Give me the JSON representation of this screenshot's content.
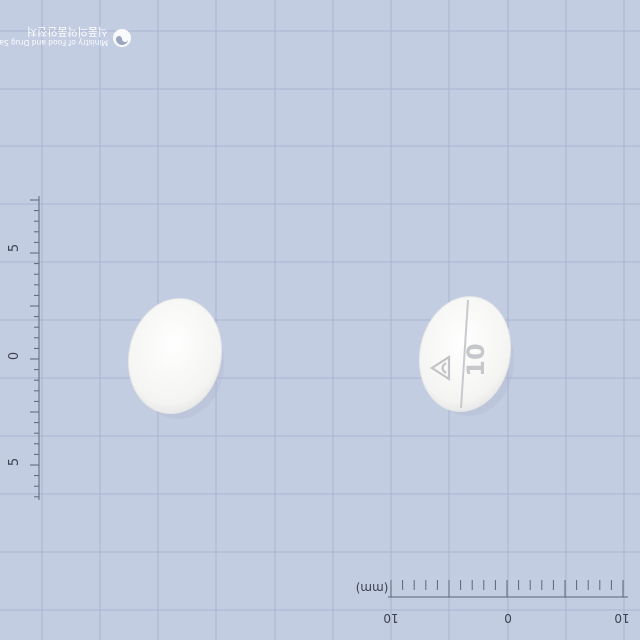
{
  "watermark": {
    "org_korean": "식품의약품안전처",
    "org_english": "Ministry of Food and Drug Safety"
  },
  "left_scale": {
    "labels": [
      "5",
      "0",
      "5"
    ]
  },
  "bottom_scale": {
    "unit": "(mm)",
    "labels": [
      "10",
      "0",
      "10"
    ]
  },
  "tablet_back": {
    "imprint": "10"
  },
  "colors": {
    "background": "#c3cde2",
    "grid_line": "#a6b3cf",
    "tablet": "#f6f6f4",
    "tick": "#5d6478"
  },
  "icons": [
    "mfds-emblem-icon",
    "tablet-logo-icon"
  ]
}
